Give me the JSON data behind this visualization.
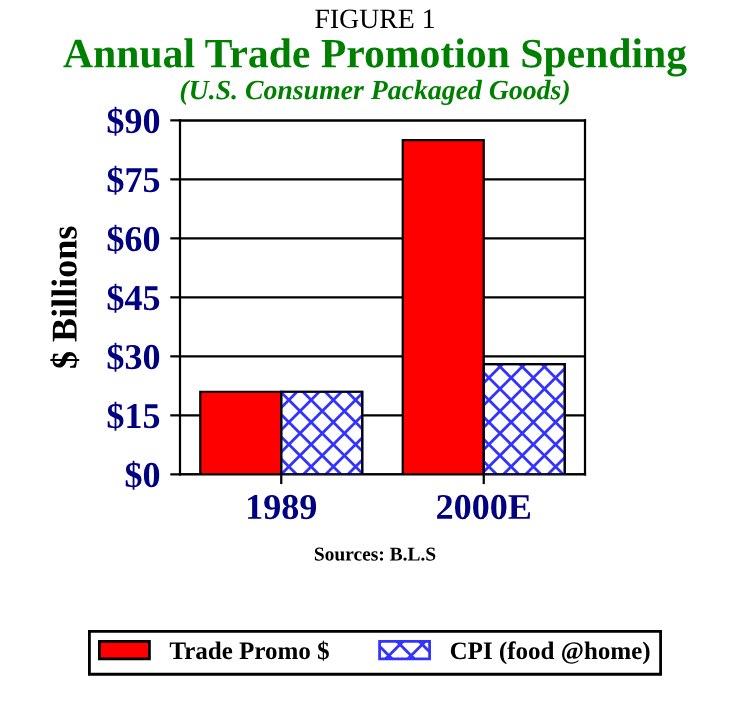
{
  "chart_data": {
    "type": "bar",
    "title": "Annual Trade Promotion Spending",
    "subtitle": "(U.S. Consumer Packaged Goods)",
    "ylabel": "$ Billions",
    "categories": [
      "1989",
      "2000E"
    ],
    "series": [
      {
        "name": "Trade Promo $",
        "color": "#ff0000",
        "values": [
          21,
          85
        ]
      },
      {
        "name": "CPI (food @home)",
        "color": "#3333ff",
        "values": [
          21,
          28
        ]
      }
    ],
    "ylim": [
      0,
      90
    ],
    "yticks": [
      {
        "value": 0,
        "label": "$0"
      },
      {
        "value": 15,
        "label": "$15"
      },
      {
        "value": 30,
        "label": "$30"
      },
      {
        "value": 45,
        "label": "$45"
      },
      {
        "value": 60,
        "label": "$60"
      },
      {
        "value": 75,
        "label": "$75"
      },
      {
        "value": 90,
        "label": "$90"
      }
    ],
    "grid": "y",
    "legend": "bottom",
    "annotations": [
      "FIGURE 1",
      "Sources: B.L.S"
    ]
  }
}
